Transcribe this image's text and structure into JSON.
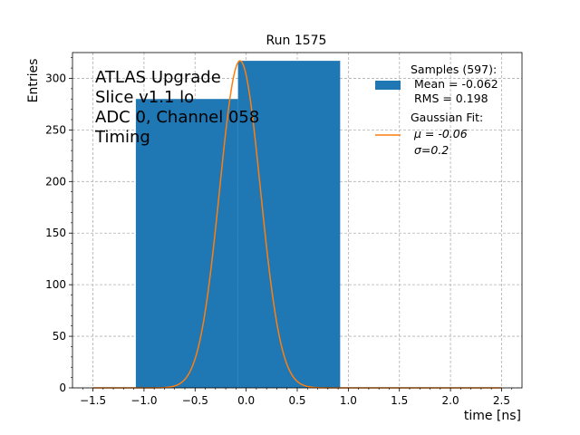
{
  "chart_data": {
    "type": "bar",
    "title": "Run 1575",
    "xlabel": "time [ns]",
    "ylabel": "Entries",
    "xlim": [
      -1.7,
      2.7
    ],
    "ylim": [
      0,
      325
    ],
    "xticks": [
      -1.5,
      -1.0,
      -0.5,
      0.0,
      0.5,
      1.0,
      1.5,
      2.0,
      2.5
    ],
    "xtick_labels": [
      "−1.5",
      "−1.0",
      "−0.5",
      "0.0",
      "0.5",
      "1.0",
      "1.5",
      "2.0",
      "2.5"
    ],
    "yticks": [
      0,
      50,
      100,
      150,
      200,
      250,
      300
    ],
    "ytick_labels": [
      "0",
      "50",
      "100",
      "150",
      "200",
      "250",
      "300"
    ],
    "grid": true,
    "annotation_lines": [
      "ATLAS Upgrade",
      "Slice v1.1 lo",
      "ADC 0, Channel 058",
      "Timing"
    ],
    "histogram": {
      "name": "Samples (597):",
      "color": "#1f77b4",
      "bins": [
        {
          "x0": -1.08,
          "x1": -0.08,
          "count": 280
        },
        {
          "x0": -0.08,
          "x1": 0.92,
          "count": 317
        }
      ]
    },
    "fit": {
      "name": "Gaussian Fit:",
      "color": "#ff7f0e",
      "amplitude": 317,
      "mu": -0.06,
      "sigma": 0.2,
      "x_range": [
        -1.5,
        2.5
      ]
    },
    "legend": {
      "position": "top-right",
      "samples_lines": [
        "Samples (597):",
        " Mean = -0.062",
        " RMS = 0.198"
      ],
      "fit_lines": [
        "Gaussian Fit:",
        " μ = -0.06",
        " σ=0.2"
      ]
    }
  }
}
